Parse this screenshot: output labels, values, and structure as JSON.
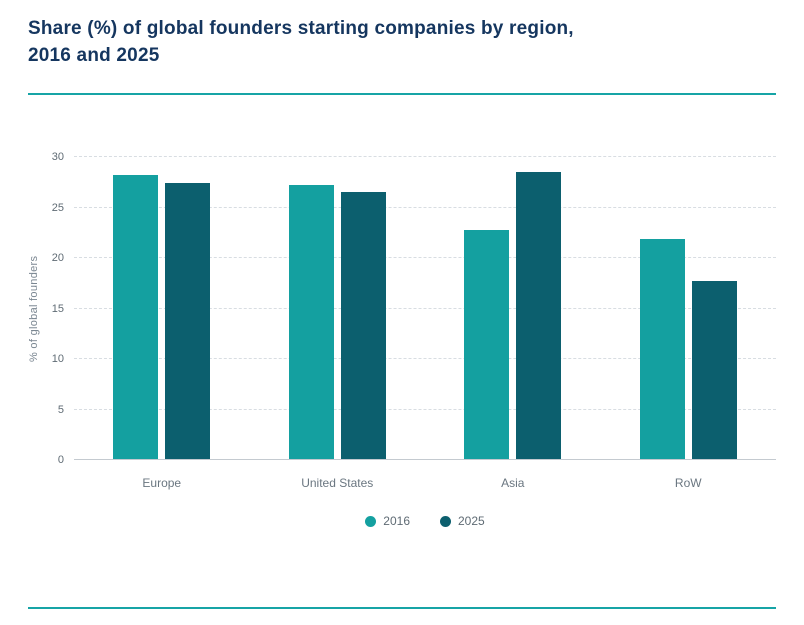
{
  "header": {
    "title_line1": "Share (%) of global founders starting companies by region,",
    "title_line2": "2016 and 2025"
  },
  "chart_data": {
    "type": "bar",
    "title": "Share (%) of global founders starting companies by region, 2016 and 2025",
    "categories": [
      "Europe",
      "United States",
      "Asia",
      "RoW"
    ],
    "series": [
      {
        "name": "2016",
        "color": "#14a0a0",
        "values": [
          28.2,
          27.2,
          22.8,
          21.9
        ]
      },
      {
        "name": "2025",
        "color": "#0c5f6e",
        "values": [
          27.4,
          26.6,
          28.5,
          17.7
        ]
      }
    ],
    "xlabel": "",
    "ylabel": "% of global founders",
    "ylim": [
      0,
      30
    ],
    "yticks": [
      0,
      5,
      10,
      15,
      20,
      25,
      30
    ],
    "grid": "dashed-horizontal",
    "legend_position": "bottom"
  },
  "colors": {
    "series_2016": "#14a0a0",
    "series_2025": "#0c5f6e",
    "title_text": "#15365f",
    "axis_text": "#5f6b74",
    "divider_rule": "#16a4a6",
    "gridline": "#d8dde2"
  }
}
